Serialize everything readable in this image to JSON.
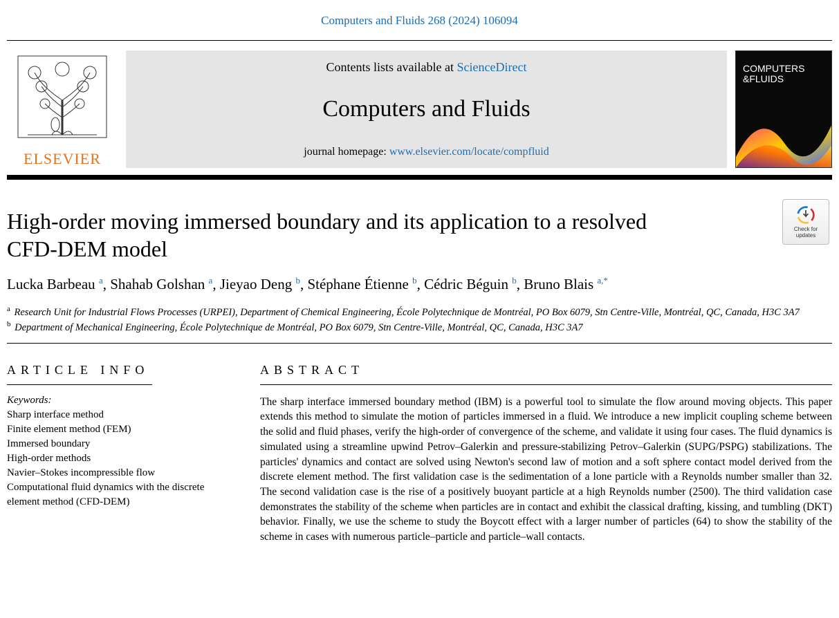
{
  "running_head": {
    "journal": "Computers and Fluids",
    "citation": "268 (2024) 106094"
  },
  "masthead": {
    "publisher_name": "ELSEVIER",
    "contents_prefix": "Contents lists available at ",
    "contents_link_text": "ScienceDirect",
    "journal_name": "Computers and Fluids",
    "homepage_prefix": "journal homepage: ",
    "homepage_link_text": "www.elsevier.com/locate/compfluid",
    "cover_title_line1": "COMPUTERS",
    "cover_title_line2": "&FLUIDS"
  },
  "check_updates": {
    "line1": "Check for",
    "line2": "updates"
  },
  "article": {
    "title": "High-order moving immersed boundary and its application to a resolved CFD-DEM model",
    "authors": [
      {
        "name": "Lucka Barbeau",
        "marks": "a"
      },
      {
        "name": "Shahab Golshan",
        "marks": "a"
      },
      {
        "name": "Jieyao Deng",
        "marks": "b"
      },
      {
        "name": "Stéphane Étienne",
        "marks": "b"
      },
      {
        "name": "Cédric Béguin",
        "marks": "b"
      },
      {
        "name": "Bruno Blais",
        "marks": "a,*"
      }
    ],
    "affiliations": [
      {
        "mark": "a",
        "text": "Research Unit for Industrial Flows Processes (URPEI), Department of Chemical Engineering, École Polytechnique de Montréal, PO Box 6079, Stn Centre-Ville, Montréal, QC, Canada, H3C 3A7"
      },
      {
        "mark": "b",
        "text": "Department of Mechanical Engineering, École Polytechnique de Montréal, PO Box 6079, Stn Centre-Ville, Montréal, QC, Canada, H3C 3A7"
      }
    ]
  },
  "article_info": {
    "heading": "ARTICLE INFO",
    "keywords_label": "Keywords:",
    "keywords": [
      "Sharp interface method",
      "Finite element method (FEM)",
      "Immersed boundary",
      "High-order methods",
      "Navier–Stokes incompressible flow",
      "Computational fluid dynamics with the discrete element method (CFD-DEM)"
    ]
  },
  "abstract": {
    "heading": "ABSTRACT",
    "text": "The sharp interface immersed boundary method (IBM) is a powerful tool to simulate the flow around moving objects. This paper extends this method to simulate the motion of particles immersed in a fluid. We introduce a new implicit coupling scheme between the solid and fluid phases, verify the high-order of convergence of the scheme, and validate it using four cases. The fluid dynamics is simulated using a streamline upwind Petrov–Galerkin and pressure-stabilizing Petrov–Galerkin (SUPG/PSPG) stabilizations. The particles' dynamics and contact are solved using Newton's second law of motion and a soft sphere contact model derived from the discrete element method. The first validation case is the sedimentation of a lone particle with a Reynolds number smaller than 32. The second validation case is the rise of a positively buoyant particle at a high Reynolds number (2500). The third validation case demonstrates the stability of the scheme when particles are in contact and exhibit the classical drafting, kissing, and tumbling (DKT) behavior. Finally, we use the scheme to study the Boycott effect with a larger number of particles (64) to show the stability of the scheme in cases with numerous particle–particle and particle–wall contacts."
  },
  "colors": {
    "link": "#1a6db5",
    "publisher": "#e9711c",
    "masthead_bg": "#e5e5e5"
  }
}
